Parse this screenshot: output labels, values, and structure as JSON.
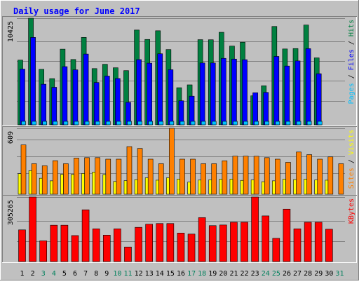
{
  "chart_data": [
    {
      "type": "bar",
      "title": "Daily usage for June 2017",
      "ylabel": "Pages / Files / Hits",
      "ymax_label": "10425",
      "ylim": [
        0,
        10425
      ],
      "categories": [
        "1",
        "2",
        "3",
        "4",
        "5",
        "6",
        "7",
        "8",
        "9",
        "10",
        "11",
        "12",
        "13",
        "14",
        "15",
        "16",
        "17",
        "18",
        "19",
        "20",
        "21",
        "22",
        "23",
        "24",
        "25",
        "26",
        "27",
        "28",
        "29",
        "30",
        "31"
      ],
      "series": [
        {
          "name": "Hits",
          "color": "#008040",
          "values": [
            6330,
            10425,
            5430,
            4520,
            7400,
            6390,
            8550,
            5500,
            5920,
            5580,
            5300,
            9270,
            8350,
            9200,
            7360,
            3630,
            3910,
            8330,
            8320,
            9050,
            7700,
            8080,
            2840,
            3820,
            9620,
            7420,
            7460,
            9760,
            6550,
            0,
            0
          ]
        },
        {
          "name": "Files",
          "color": "#0000ff",
          "values": [
            5450,
            8550,
            3970,
            3670,
            5690,
            5380,
            6920,
            4140,
            4770,
            4530,
            2200,
            6380,
            6030,
            6950,
            5390,
            2350,
            2800,
            6050,
            6050,
            6500,
            6430,
            6370,
            3140,
            3170,
            6690,
            5750,
            6250,
            7450,
            5000,
            0,
            0
          ]
        },
        {
          "name": "Pages",
          "color": "#00c0ff",
          "values": [
            380,
            380,
            380,
            380,
            380,
            380,
            380,
            380,
            380,
            380,
            380,
            380,
            380,
            380,
            380,
            380,
            380,
            380,
            380,
            380,
            380,
            380,
            380,
            380,
            380,
            380,
            380,
            380,
            380,
            0,
            0
          ]
        }
      ]
    },
    {
      "type": "bar",
      "ylabel": "Sites / Visits",
      "ymax_label": "609",
      "ylim": [
        0,
        609
      ],
      "categories": [
        "1",
        "2",
        "3",
        "4",
        "5",
        "6",
        "7",
        "8",
        "9",
        "10",
        "11",
        "12",
        "13",
        "14",
        "15",
        "16",
        "17",
        "18",
        "19",
        "20",
        "21",
        "22",
        "23",
        "24",
        "25",
        "26",
        "27",
        "28",
        "29",
        "30",
        "31"
      ],
      "series": [
        {
          "name": "Visits",
          "color": "#ff8000",
          "values": [
            456,
            282,
            263,
            310,
            282,
            334,
            338,
            338,
            324,
            324,
            440,
            423,
            324,
            282,
            609,
            324,
            324,
            282,
            282,
            309,
            352,
            352,
            351,
            338,
            324,
            295,
            390,
            366,
            324,
            345,
            282
          ]
        },
        {
          "name": "Sites",
          "color": "#ffff00",
          "values": [
            190,
            218,
            148,
            124,
            184,
            183,
            192,
            205,
            182,
            118,
            126,
            135,
            152,
            130,
            152,
            140,
            112,
            131,
            134,
            139,
            140,
            128,
            132,
            116,
            124,
            140,
            136,
            140,
            132,
            130,
            0
          ]
        }
      ]
    },
    {
      "type": "bar",
      "ylabel": "KBytes",
      "ymax_label": "305265",
      "ylim": [
        0,
        305265
      ],
      "categories": [
        "1",
        "2",
        "3",
        "4",
        "5",
        "6",
        "7",
        "8",
        "9",
        "10",
        "11",
        "12",
        "13",
        "14",
        "15",
        "16",
        "17",
        "18",
        "19",
        "20",
        "21",
        "22",
        "23",
        "24",
        "25",
        "26",
        "27",
        "28",
        "29",
        "30",
        "31"
      ],
      "series": [
        {
          "name": "KBytes",
          "color": "#ff0000",
          "values": [
            150000,
            305265,
            98000,
            172000,
            172000,
            123000,
            245000,
            155000,
            125000,
            155000,
            69000,
            162000,
            177000,
            180000,
            180000,
            135000,
            130000,
            208000,
            170000,
            173000,
            186000,
            186000,
            305265,
            216000,
            110000,
            248000,
            155000,
            186000,
            186000,
            153000,
            0
          ]
        }
      ]
    }
  ],
  "x_axis": {
    "labels": [
      "1",
      "2",
      "3",
      "4",
      "5",
      "6",
      "7",
      "8",
      "9",
      "10",
      "11",
      "12",
      "13",
      "14",
      "15",
      "16",
      "17",
      "18",
      "19",
      "20",
      "21",
      "22",
      "23",
      "24",
      "25",
      "26",
      "27",
      "28",
      "29",
      "30",
      "31"
    ],
    "weekday_color": "#000000",
    "weekend_color": "#00805c",
    "weekend_days": [
      "3",
      "4",
      "10",
      "11",
      "17",
      "18",
      "24",
      "25",
      "31"
    ]
  },
  "colors": {
    "background": "#c0c0c0",
    "border_light": "#ffffff",
    "border_dark": "#808080",
    "title": "#0000ff"
  }
}
